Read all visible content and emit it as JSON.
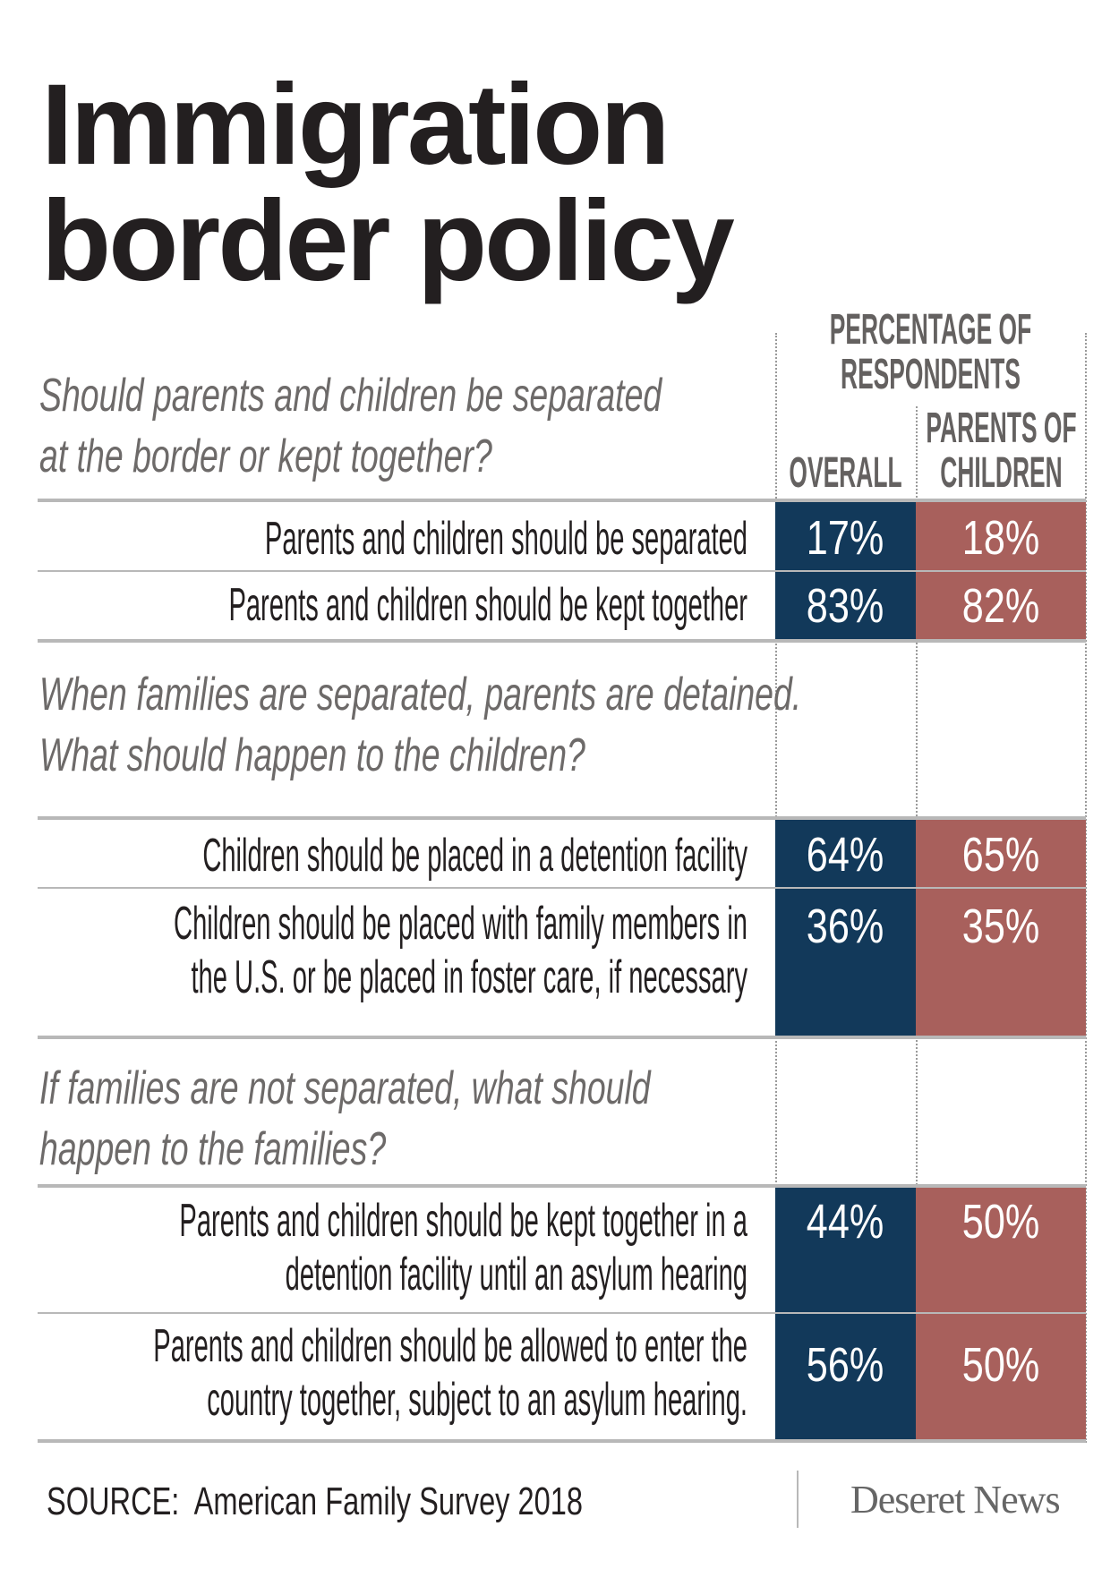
{
  "title": [
    "Immigration",
    "border policy"
  ],
  "header": {
    "group": [
      "PERCENTAGE OF",
      "RESPONDENTS"
    ],
    "overall": "OVERALL",
    "parents": [
      "PARENTS OF",
      "CHILDREN"
    ]
  },
  "colors": {
    "overall": "#12395a",
    "parents": "#a8605c",
    "rule": "#b8b8b8"
  },
  "chart_data": {
    "type": "table",
    "title": "Immigration border policy",
    "columns": [
      "Overall",
      "Parents of children"
    ],
    "units": "percentage of respondents",
    "sections": [
      {
        "question": [
          "Should parents and children be separated",
          "at the border or kept together?"
        ],
        "rows": [
          {
            "label": [
              "Parents and children should be separated"
            ],
            "overall": "17%",
            "parents": "18%"
          },
          {
            "label": [
              "Parents and children should be kept together"
            ],
            "overall": "83%",
            "parents": "82%"
          }
        ]
      },
      {
        "question": [
          "When families are separated, parents are detained.",
          "What should happen to the children?"
        ],
        "rows": [
          {
            "label": [
              "Children should be placed in a detention facility"
            ],
            "overall": "64%",
            "parents": "65%"
          },
          {
            "label": [
              "Children should be placed with family members in",
              "the U.S. or be placed in foster care, if necessary"
            ],
            "overall": "36%",
            "parents": "35%"
          }
        ]
      },
      {
        "question": [
          "If families are not separated, what should",
          "happen to the families?"
        ],
        "rows": [
          {
            "label": [
              "Parents and children should be kept together in a",
              "detention facility until an asylum hearing"
            ],
            "overall": "44%",
            "parents": "50%"
          },
          {
            "label": [
              "Parents and children should be allowed to enter the",
              "country together, subject to an asylum hearing."
            ],
            "overall": "56%",
            "parents": "50%"
          }
        ]
      }
    ]
  },
  "footer": {
    "source": "SOURCE:  American Family Survey 2018",
    "logo": "Deseret News"
  }
}
